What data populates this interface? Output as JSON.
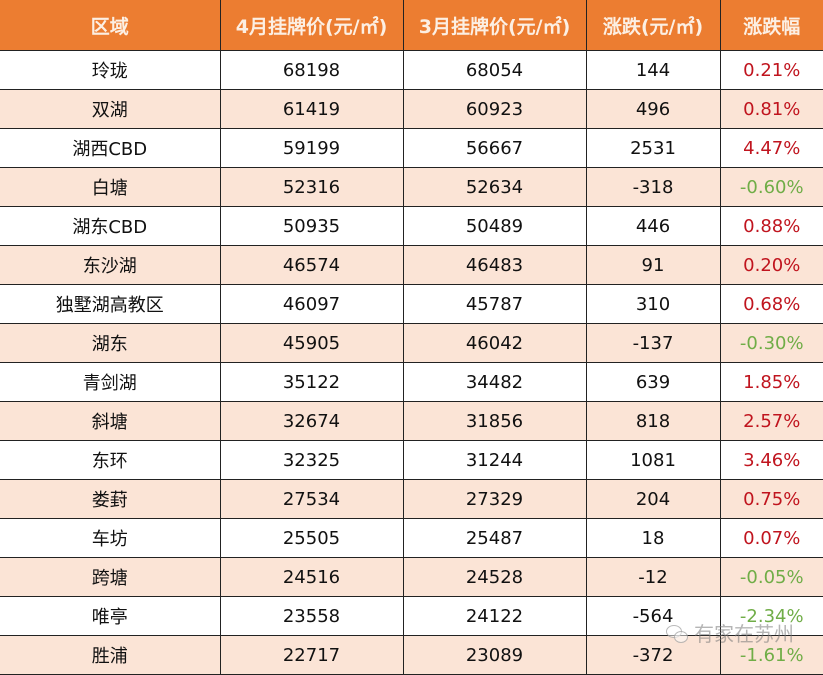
{
  "table": {
    "headers": [
      "区域",
      "4月挂牌价(元/㎡)",
      "3月挂牌价(元/㎡)",
      "涨跌(元/㎡)",
      "涨跌幅"
    ],
    "rows": [
      {
        "area": "玲珑",
        "apr": "68198",
        "mar": "68054",
        "change": "144",
        "pct": "0.21%",
        "dir": "up"
      },
      {
        "area": "双湖",
        "apr": "61419",
        "mar": "60923",
        "change": "496",
        "pct": "0.81%",
        "dir": "up"
      },
      {
        "area": "湖西CBD",
        "apr": "59199",
        "mar": "56667",
        "change": "2531",
        "pct": "4.47%",
        "dir": "up"
      },
      {
        "area": "白塘",
        "apr": "52316",
        "mar": "52634",
        "change": "-318",
        "pct": "-0.60%",
        "dir": "down"
      },
      {
        "area": "湖东CBD",
        "apr": "50935",
        "mar": "50489",
        "change": "446",
        "pct": "0.88%",
        "dir": "up"
      },
      {
        "area": "东沙湖",
        "apr": "46574",
        "mar": "46483",
        "change": "91",
        "pct": "0.20%",
        "dir": "up"
      },
      {
        "area": "独墅湖高教区",
        "apr": "46097",
        "mar": "45787",
        "change": "310",
        "pct": "0.68%",
        "dir": "up"
      },
      {
        "area": "湖东",
        "apr": "45905",
        "mar": "46042",
        "change": "-137",
        "pct": "-0.30%",
        "dir": "down"
      },
      {
        "area": "青剑湖",
        "apr": "35122",
        "mar": "34482",
        "change": "639",
        "pct": "1.85%",
        "dir": "up"
      },
      {
        "area": "斜塘",
        "apr": "32674",
        "mar": "31856",
        "change": "818",
        "pct": "2.57%",
        "dir": "up"
      },
      {
        "area": "东环",
        "apr": "32325",
        "mar": "31244",
        "change": "1081",
        "pct": "3.46%",
        "dir": "up"
      },
      {
        "area": "娄葑",
        "apr": "27534",
        "mar": "27329",
        "change": "204",
        "pct": "0.75%",
        "dir": "up"
      },
      {
        "area": "车坊",
        "apr": "25505",
        "mar": "25487",
        "change": "18",
        "pct": "0.07%",
        "dir": "up"
      },
      {
        "area": "跨塘",
        "apr": "24516",
        "mar": "24528",
        "change": "-12",
        "pct": "-0.05%",
        "dir": "down"
      },
      {
        "area": "唯亭",
        "apr": "23558",
        "mar": "24122",
        "change": "-564",
        "pct": "-2.34%",
        "dir": "down"
      },
      {
        "area": "胜浦",
        "apr": "22717",
        "mar": "23089",
        "change": "-372",
        "pct": "-1.61%",
        "dir": "down"
      }
    ]
  },
  "watermark": {
    "text": "有家在苏州",
    "icon": "wechat-icon"
  },
  "colors": {
    "header_bg": "#ec7d31",
    "stripe": "#fbe4d6",
    "up": "#c0141e",
    "down": "#70ad47"
  }
}
